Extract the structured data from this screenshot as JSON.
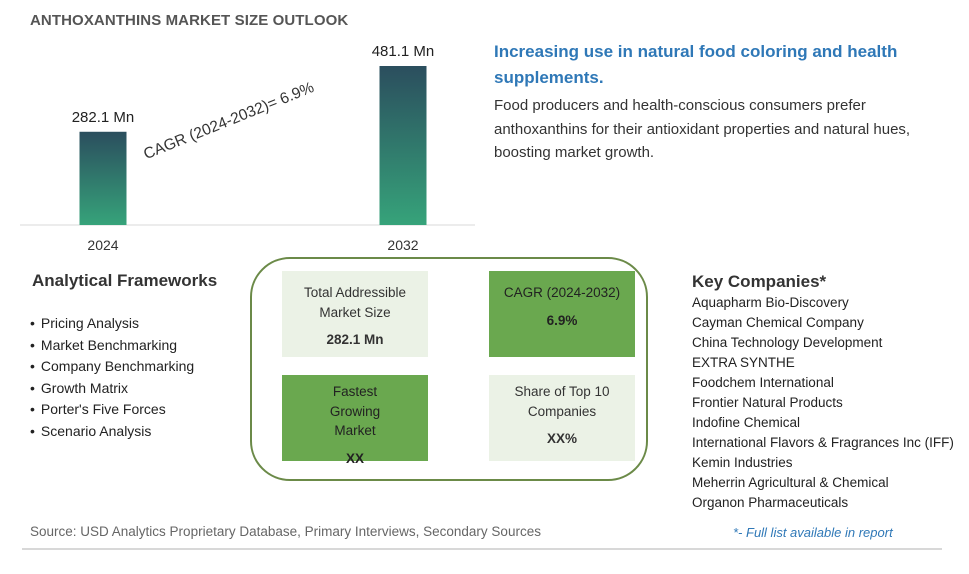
{
  "title": "ANTHOXANTHINS MARKET SIZE OUTLOOK",
  "chart_data": {
    "type": "bar",
    "categories": [
      "2024",
      "2032"
    ],
    "values": [
      282.1,
      481.1
    ],
    "value_labels": [
      "282.1 Mn",
      "481.1 Mn"
    ],
    "annotation": "CAGR (2024-2032)=  6.9%",
    "ylim": [
      0,
      481.1
    ],
    "grid": false,
    "colors": {
      "bar_top": "#2b4e5e",
      "bar_bottom": "#36a37a"
    }
  },
  "headline": "Increasing use in natural food coloring and health supplements.",
  "description": "Food producers and health-conscious consumers prefer anthoxanthins for their antioxidant properties and natural hues, boosting market growth.",
  "frameworks": {
    "title": "Analytical Frameworks",
    "items": [
      "Pricing Analysis",
      "Market Benchmarking",
      "Company Benchmarking",
      "Growth Matrix",
      "Porter's Five Forces",
      "Scenario Analysis"
    ]
  },
  "metrics": {
    "tam": {
      "label": "Total Addressible Market Size",
      "value": "282.1 Mn"
    },
    "cagr": {
      "label": "CAGR (2024-2032)",
      "value": "6.9%"
    },
    "fastest": {
      "label": "Fastest Growing Market",
      "value": "XX"
    },
    "share": {
      "label": "Share of Top 10 Companies",
      "value": "XX%"
    }
  },
  "companies": {
    "title": "Key Companies*",
    "items": [
      "Aquapharm Bio-Discovery",
      "Cayman Chemical Company",
      "China Technology Development",
      "EXTRA SYNTHE",
      "Foodchem International",
      "Frontier Natural Products",
      "Indofine Chemical",
      "International Flavors & Fragrances Inc (IFF)",
      "Kemin Industries",
      "Meherrin Agricultural & Chemical",
      "Organon Pharmaceuticals"
    ]
  },
  "source": "Source: USD Analytics Proprietary Database, Primary Interviews, Secondary Sources",
  "full_list_note": "*- Full list available in report",
  "colors": {
    "accent": "#2f78b7",
    "green_dark": "#6aa84f",
    "green_light": "#ebf2e6",
    "frame": "#6b8a48"
  }
}
